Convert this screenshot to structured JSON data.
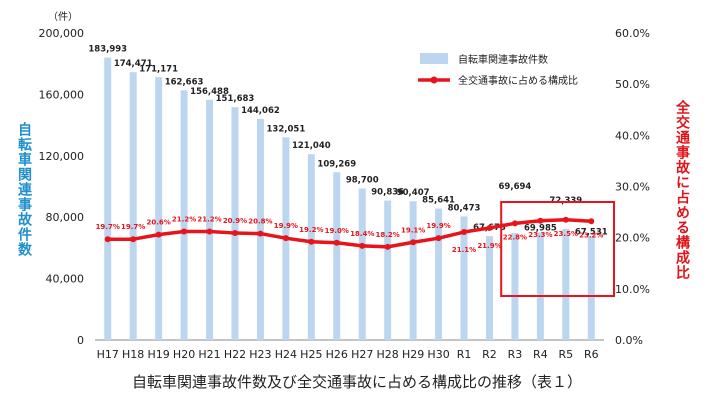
{
  "chart_data": {
    "type": "bar+line",
    "title": "自転車関連事故件数及び全交通事故に占める構成比の推移（表１）",
    "unit_left": "（件）",
    "ylabel_left": "自転車関連事故件数",
    "ylabel_right": "全交通事故に占める構成比",
    "categories": [
      "H17",
      "H18",
      "H19",
      "H20",
      "H21",
      "H22",
      "H23",
      "H24",
      "H25",
      "H26",
      "H27",
      "H28",
      "H29",
      "H30",
      "R1",
      "R2",
      "R3",
      "R4",
      "R5",
      "R6"
    ],
    "y_left_lim": [
      0,
      200000
    ],
    "y_left_ticks": [
      "0",
      "40,000",
      "80,000",
      "120,000",
      "160,000",
      "200,000"
    ],
    "y_right_lim": [
      0,
      60
    ],
    "y_right_ticks": [
      "0.0%",
      "10.0%",
      "20.0%",
      "30.0%",
      "40.0%",
      "50.0%",
      "60.0%"
    ],
    "series": [
      {
        "name": "自転車関連事故件数",
        "kind": "bar",
        "color": "#bcd6ef",
        "values": [
          183993,
          174471,
          171171,
          162663,
          156488,
          151683,
          144062,
          132051,
          121040,
          109269,
          98700,
          90836,
          90407,
          85641,
          80473,
          67673,
          69694,
          69985,
          72339,
          67531
        ],
        "labels": [
          "183,993",
          "174,471",
          "171,171",
          "162,663",
          "156,488",
          "151,683",
          "144,062",
          "132,051",
          "121,040",
          "109,269",
          "98,700",
          "90,836",
          "90,407",
          "85,641",
          "80,473",
          "67,673",
          "69,694",
          "69,985",
          "72,339",
          "67,531"
        ]
      },
      {
        "name": "全交通事故に占める構成比",
        "kind": "line",
        "color": "#e8141c",
        "values": [
          19.7,
          19.7,
          20.6,
          21.2,
          21.2,
          20.9,
          20.8,
          19.9,
          19.2,
          19.0,
          18.4,
          18.2,
          19.1,
          19.9,
          21.1,
          21.9,
          22.8,
          23.3,
          23.5,
          23.2
        ],
        "labels": [
          "19.7%",
          "19.7%",
          "20.6%",
          "21.2%",
          "21.2%",
          "20.9%",
          "20.8%",
          "19.9%",
          "19.2%",
          "19.0%",
          "18.4%",
          "18.2%",
          "19.1%",
          "19.9%",
          "21.1%",
          "21.9%",
          "22.8%",
          "23.3%",
          "23.5%",
          "23.2%"
        ]
      }
    ],
    "legend_position": "top-right",
    "highlight_color": "#e8141c",
    "highlight_categories": [
      "R3",
      "R4",
      "R5",
      "R6"
    ],
    "grid": false
  }
}
